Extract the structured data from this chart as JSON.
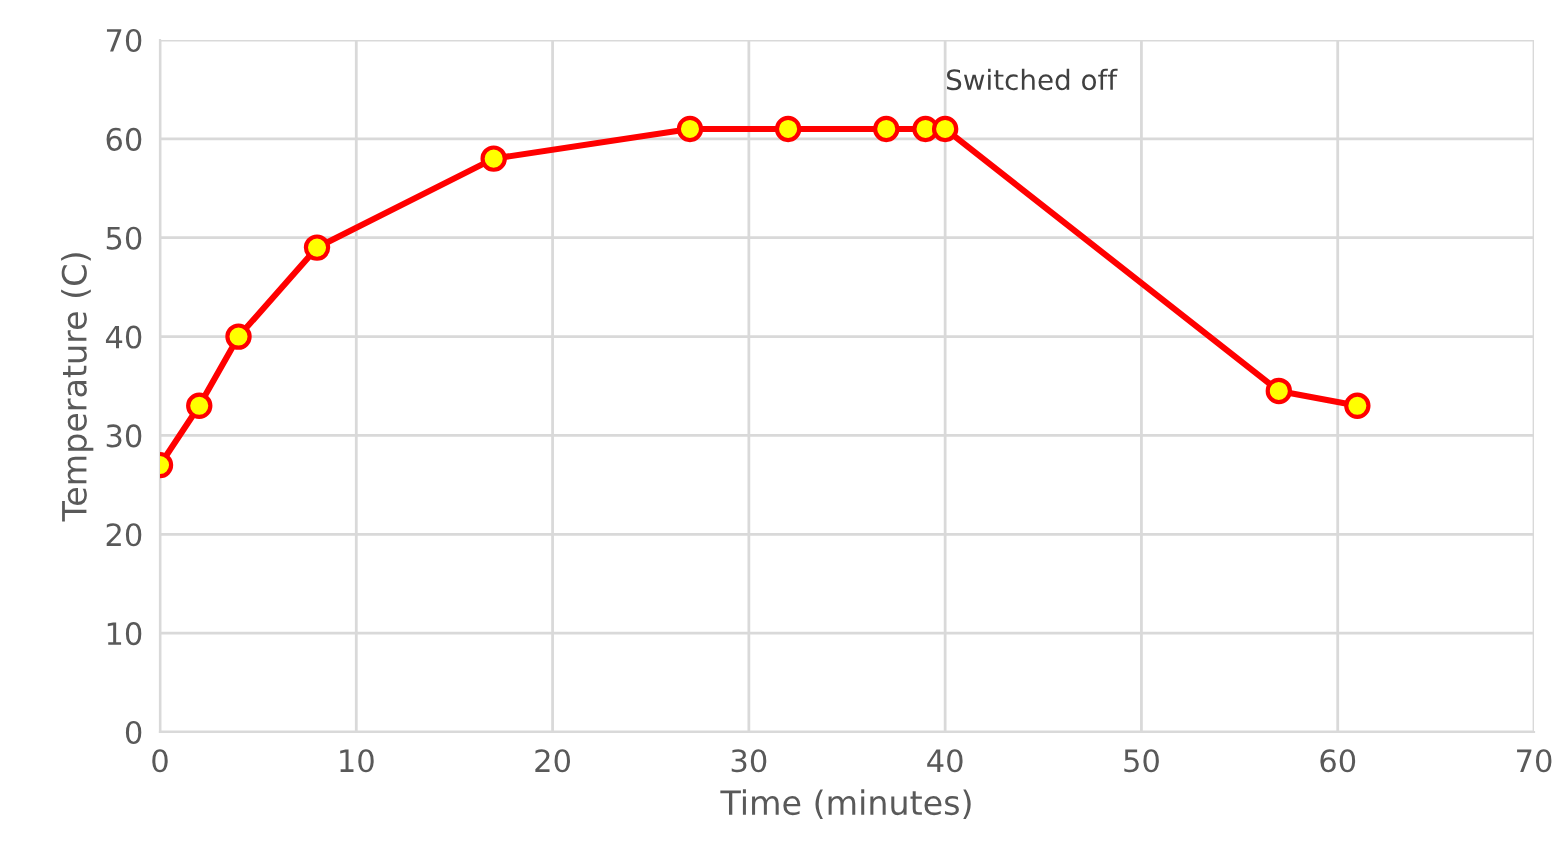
{
  "chart_data": {
    "type": "line",
    "xlabel": "Time (minutes)",
    "ylabel": "Temperature (C)",
    "x": [
      0,
      2,
      4,
      8,
      17,
      27,
      32,
      37,
      39,
      40,
      57,
      61
    ],
    "series": [
      {
        "color": "#ff0000",
        "values": [
          27,
          33,
          40,
          49,
          58,
          61,
          61,
          61,
          61,
          61,
          34.5,
          33
        ]
      }
    ],
    "xlim": [
      0,
      70
    ],
    "xticks": [
      0,
      10,
      20,
      30,
      40,
      50,
      60,
      70
    ],
    "ylim": [
      0,
      70
    ],
    "yticks": [
      0,
      10,
      20,
      30,
      40,
      50,
      60,
      70
    ],
    "grid": true,
    "marker": "circle",
    "line_style": "solid",
    "annotations": [
      {
        "text": "Switched off",
        "x": 40,
        "y": 61
      }
    ]
  }
}
